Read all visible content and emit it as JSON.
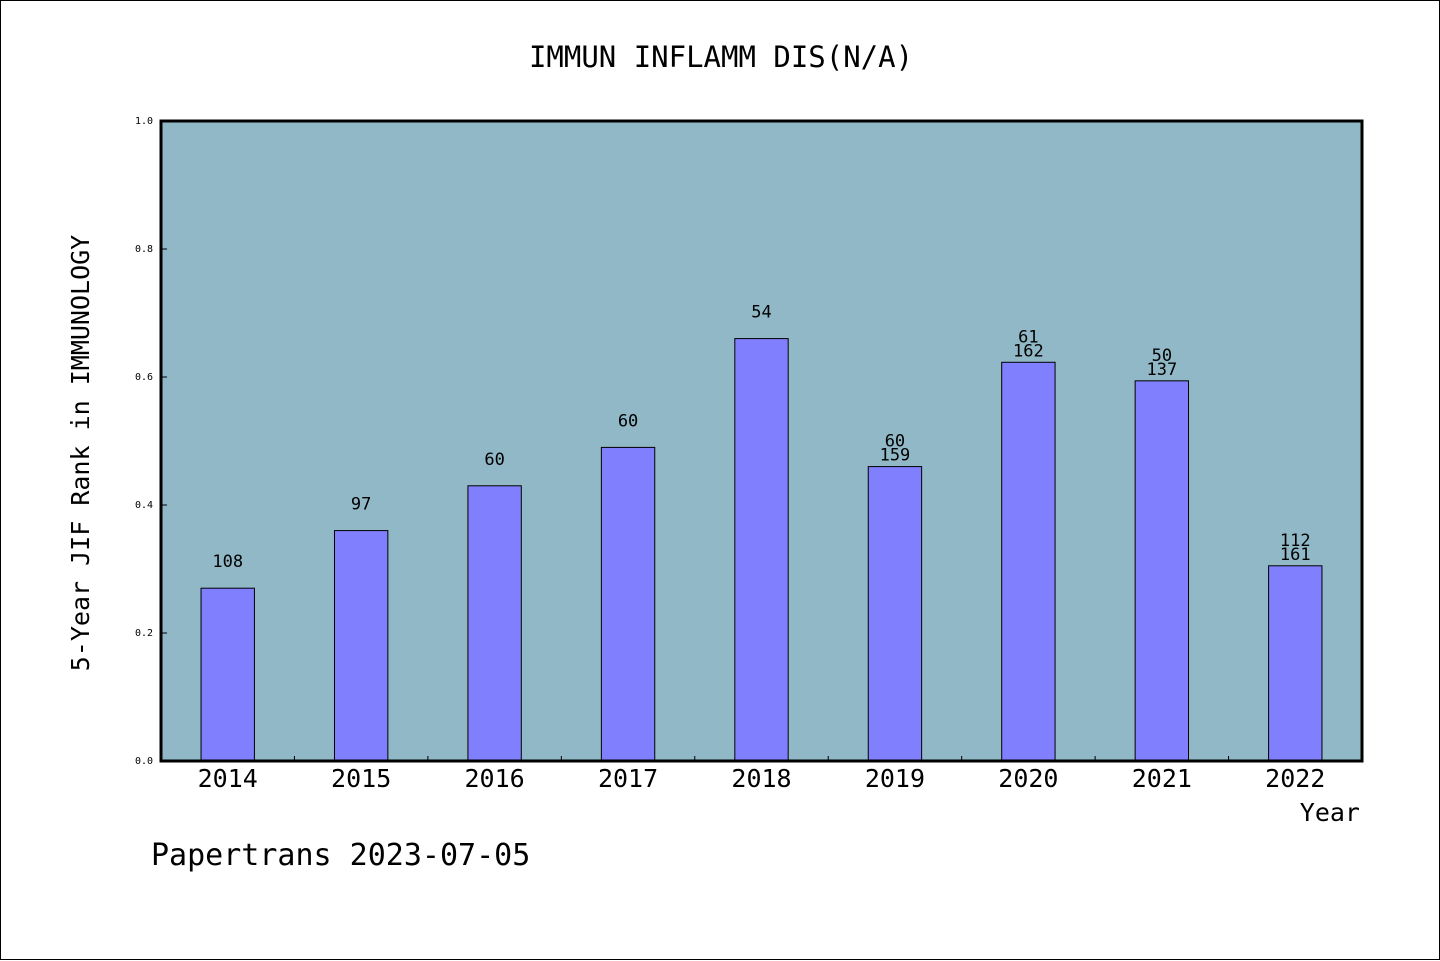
{
  "chart_data": {
    "type": "bar",
    "title": "IMMUN INFLAMM DIS(N/A)",
    "xlabel": "Year",
    "ylabel": "5-Year JIF Rank in IMMUNOLOGY",
    "ylim": [
      0,
      1.0
    ],
    "yticks": [
      "0.0",
      "0.2",
      "0.4",
      "0.6",
      "0.8",
      "1.0"
    ],
    "categories": [
      "2014",
      "2015",
      "2016",
      "2017",
      "2018",
      "2019",
      "2020",
      "2021",
      "2022"
    ],
    "values": [
      0.27,
      0.36,
      0.43,
      0.49,
      0.66,
      0.46,
      0.623,
      0.594,
      0.305
    ],
    "data_labels": [
      [
        "108"
      ],
      [
        "97"
      ],
      [
        "60"
      ],
      [
        "60"
      ],
      [
        "54"
      ],
      [
        "60",
        "159"
      ],
      [
        "61",
        "162"
      ],
      [
        "50",
        "137"
      ],
      [
        "112",
        "161"
      ]
    ],
    "grid": false,
    "colors": {
      "plot_background": "#90b8c6",
      "bar_fill": "#8080ff",
      "bar_stroke": "#000000"
    }
  },
  "footer": {
    "text": "Papertrans 2023-07-05"
  }
}
